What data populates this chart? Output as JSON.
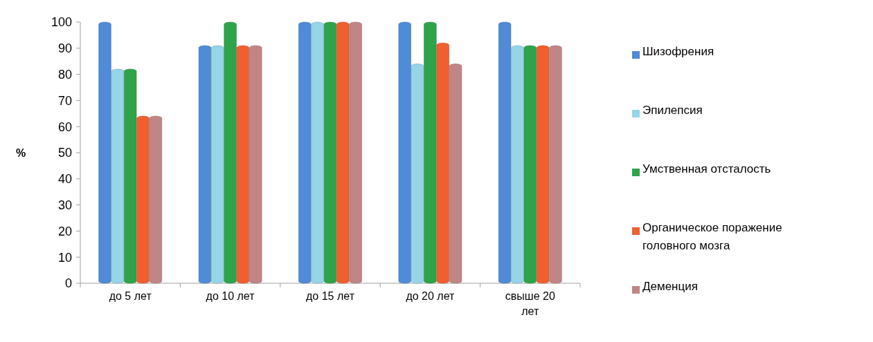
{
  "chart_data": {
    "type": "bar",
    "ylabel": "%",
    "categories": [
      "до 5 лет",
      "до 10 лет",
      "до 15 лет",
      "до 20 лет",
      "свыше 20 лет"
    ],
    "series": [
      {
        "name": "Шизофрения",
        "color": "#4f8bd6",
        "values": [
          100,
          91,
          100,
          100,
          100
        ]
      },
      {
        "name": "Эпилепсия",
        "color": "#96d4e8",
        "values": [
          82,
          91,
          100,
          84,
          91
        ]
      },
      {
        "name": "Умственная отсталость",
        "color": "#2ea34a",
        "values": [
          82,
          100,
          100,
          100,
          91
        ]
      },
      {
        "name": "Органическое поражение головного мозга",
        "color": "#f05f2f",
        "values": [
          64,
          91,
          100,
          92,
          91
        ]
      },
      {
        "name": "Деменция",
        "color": "#c08585",
        "values": [
          64,
          91,
          100,
          84,
          91
        ]
      }
    ],
    "ylim": [
      0,
      100
    ],
    "yticks": [
      0,
      10,
      20,
      30,
      40,
      50,
      60,
      70,
      80,
      90,
      100
    ],
    "grid": false,
    "legend": "right"
  }
}
